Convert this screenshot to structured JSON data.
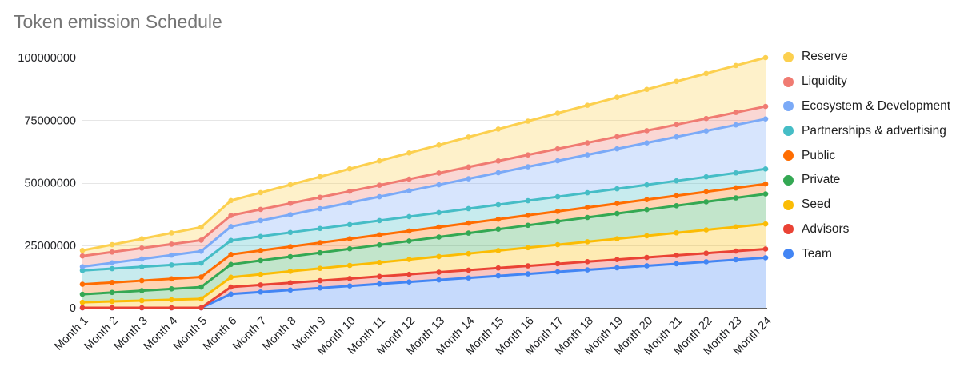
{
  "title": "Token emission Schedule",
  "axis": {
    "y_tick_labels": [
      "0",
      "25000000",
      "50000000",
      "75000000",
      "100000000"
    ]
  },
  "chart_data": {
    "type": "area",
    "stacked": true,
    "title": "Token emission Schedule",
    "xlabel": "",
    "ylabel": "",
    "ylim": [
      0,
      100000000
    ],
    "y_ticks": [
      0,
      25000000,
      50000000,
      75000000,
      100000000
    ],
    "grid": true,
    "legend_position": "right",
    "point_markers": true,
    "categories": [
      "Month 1",
      "Month 2",
      "Month 3",
      "Month 4",
      "Month 5",
      "Month 6",
      "Month 7",
      "Month 8",
      "Month 9",
      "Month 10",
      "Month 11",
      "Month 12",
      "Month 13",
      "Month 14",
      "Month 15",
      "Month 16",
      "Month 17",
      "Month 18",
      "Month 19",
      "Month 20",
      "Month 21",
      "Month 22",
      "Month 23",
      "Month 24"
    ],
    "legend_order": [
      "Reserve",
      "Liquidity",
      "Ecosystem & Development",
      "Partnerships & advertising",
      "Public",
      "Private",
      "Seed",
      "Advisors",
      "Team"
    ],
    "series": [
      {
        "name": "Team",
        "color": "#4285F4",
        "total_at_month_24": 20000000,
        "values": [
          0,
          0,
          0,
          0,
          0,
          5500000,
          6306000,
          7111000,
          7917000,
          8722000,
          9528000,
          10333000,
          11139000,
          11944000,
          12750000,
          13556000,
          14361000,
          15167000,
          15972000,
          16778000,
          17583000,
          18389000,
          19194000,
          20000000
        ]
      },
      {
        "name": "Advisors",
        "color": "#EA4335",
        "total_at_month_24": 3500000,
        "values": [
          0,
          0,
          0,
          0,
          0,
          2800000,
          2839000,
          2878000,
          2917000,
          2956000,
          2994000,
          3033000,
          3072000,
          3111000,
          3150000,
          3189000,
          3228000,
          3267000,
          3306000,
          3344000,
          3383000,
          3422000,
          3461000,
          3500000
        ]
      },
      {
        "name": "Seed",
        "color": "#FBBC04",
        "total_at_month_24": 10000000,
        "values": [
          2200000,
          2539000,
          2878000,
          3217000,
          3557000,
          3896000,
          4235000,
          4574000,
          4913000,
          5252000,
          5591000,
          5930000,
          6270000,
          6609000,
          6948000,
          7287000,
          7626000,
          7965000,
          8304000,
          8643000,
          8983000,
          9322000,
          9661000,
          10000000
        ]
      },
      {
        "name": "Private",
        "color": "#34A853",
        "total_at_month_24": 12000000,
        "values": [
          3200000,
          3583000,
          3965000,
          4348000,
          4730000,
          5113000,
          5496000,
          5878000,
          6261000,
          6643000,
          7026000,
          7409000,
          7791000,
          8174000,
          8557000,
          8939000,
          9322000,
          9704000,
          10087000,
          10470000,
          10852000,
          11235000,
          11617000,
          12000000
        ]
      },
      {
        "name": "Public",
        "color": "#FF6D01",
        "total_at_month_24": 4000000,
        "values": [
          4000000,
          4000000,
          4000000,
          4000000,
          4000000,
          4000000,
          4000000,
          4000000,
          4000000,
          4000000,
          4000000,
          4000000,
          4000000,
          4000000,
          4000000,
          4000000,
          4000000,
          4000000,
          4000000,
          4000000,
          4000000,
          4000000,
          4000000,
          4000000
        ]
      },
      {
        "name": "Partnerships & advertising",
        "color": "#46BDC6",
        "total_at_month_24": 6000000,
        "values": [
          5500000,
          5522000,
          5543000,
          5565000,
          5587000,
          5609000,
          5630000,
          5652000,
          5674000,
          5696000,
          5717000,
          5739000,
          5761000,
          5783000,
          5804000,
          5826000,
          5848000,
          5870000,
          5891000,
          5913000,
          5935000,
          5957000,
          5978000,
          6000000
        ]
      },
      {
        "name": "Ecosystem & Development",
        "color": "#7BAAF7",
        "total_at_month_24": 20000000,
        "values": [
          1500000,
          2304000,
          3109000,
          3913000,
          4717000,
          5522000,
          6326000,
          7130000,
          7935000,
          8739000,
          9543000,
          10348000,
          11152000,
          11957000,
          12761000,
          13565000,
          14370000,
          15174000,
          15978000,
          16783000,
          17587000,
          18391000,
          19196000,
          20000000
        ]
      },
      {
        "name": "Liquidity",
        "color": "#F07B72",
        "total_at_month_24": 5000000,
        "values": [
          4300000,
          4330000,
          4361000,
          4391000,
          4422000,
          4452000,
          4483000,
          4513000,
          4543000,
          4574000,
          4604000,
          4635000,
          4665000,
          4696000,
          4726000,
          4757000,
          4787000,
          4817000,
          4848000,
          4878000,
          4909000,
          4939000,
          4970000,
          5000000
        ]
      },
      {
        "name": "Reserve",
        "color": "#FCD04F",
        "total_at_month_24": 19500000,
        "values": [
          2200000,
          2952000,
          3704000,
          4457000,
          5209000,
          5961000,
          6713000,
          7465000,
          8217000,
          8970000,
          9722000,
          10474000,
          11226000,
          11978000,
          12730000,
          13483000,
          14235000,
          14987000,
          15739000,
          16491000,
          17243000,
          17996000,
          18748000,
          19500000
        ]
      }
    ]
  }
}
